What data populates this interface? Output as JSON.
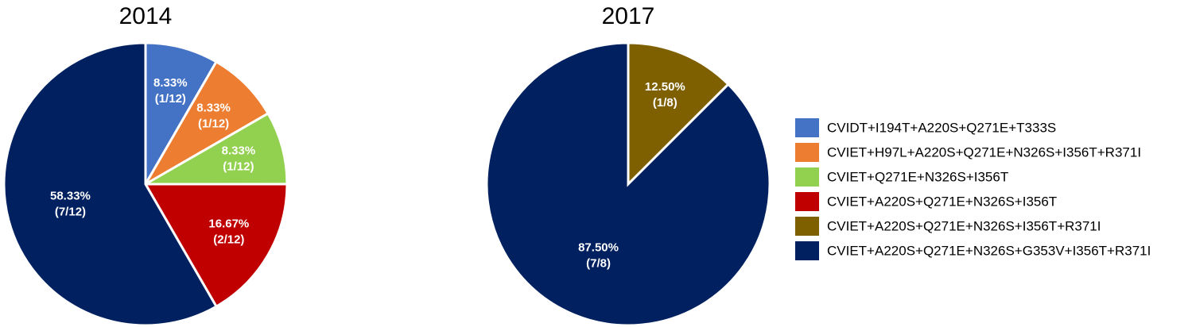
{
  "legend": {
    "categories": [
      "CVIDT+I194T+A220S+Q271E+T333S",
      "CVIET+H97L+A220S+Q271E+N326S+I356T+R371I",
      "CVIET+Q271E+N326S+I356T",
      "CVIET+A220S+Q271E+N326S+I356T",
      "CVIET+A220S+Q271E+N326S+I356T+R371I",
      "CVIET+A220S+Q271E+N326S+G353V+I356T+R371I"
    ],
    "colors": [
      "#4472c4",
      "#ed7d31",
      "#92d050",
      "#c00000",
      "#7f6000",
      "#002060"
    ]
  },
  "chart_data": [
    {
      "type": "pie",
      "title": "2014",
      "values": [
        8.33,
        8.33,
        8.33,
        16.67,
        null,
        58.33
      ],
      "value_labels": [
        "8.33%",
        "8.33%",
        "8.33%",
        "16.67%",
        null,
        "58.33%"
      ],
      "count_labels": [
        "(1/12)",
        "(1/12)",
        "(1/12)",
        "(2/12)",
        null,
        "(7/12)"
      ]
    },
    {
      "type": "pie",
      "title": "2017",
      "values": [
        null,
        null,
        null,
        null,
        12.5,
        87.5
      ],
      "value_labels": [
        null,
        null,
        null,
        null,
        "12.50%",
        "87.50%"
      ],
      "count_labels": [
        null,
        null,
        null,
        null,
        "(1/8)",
        "(7/8)"
      ]
    }
  ]
}
